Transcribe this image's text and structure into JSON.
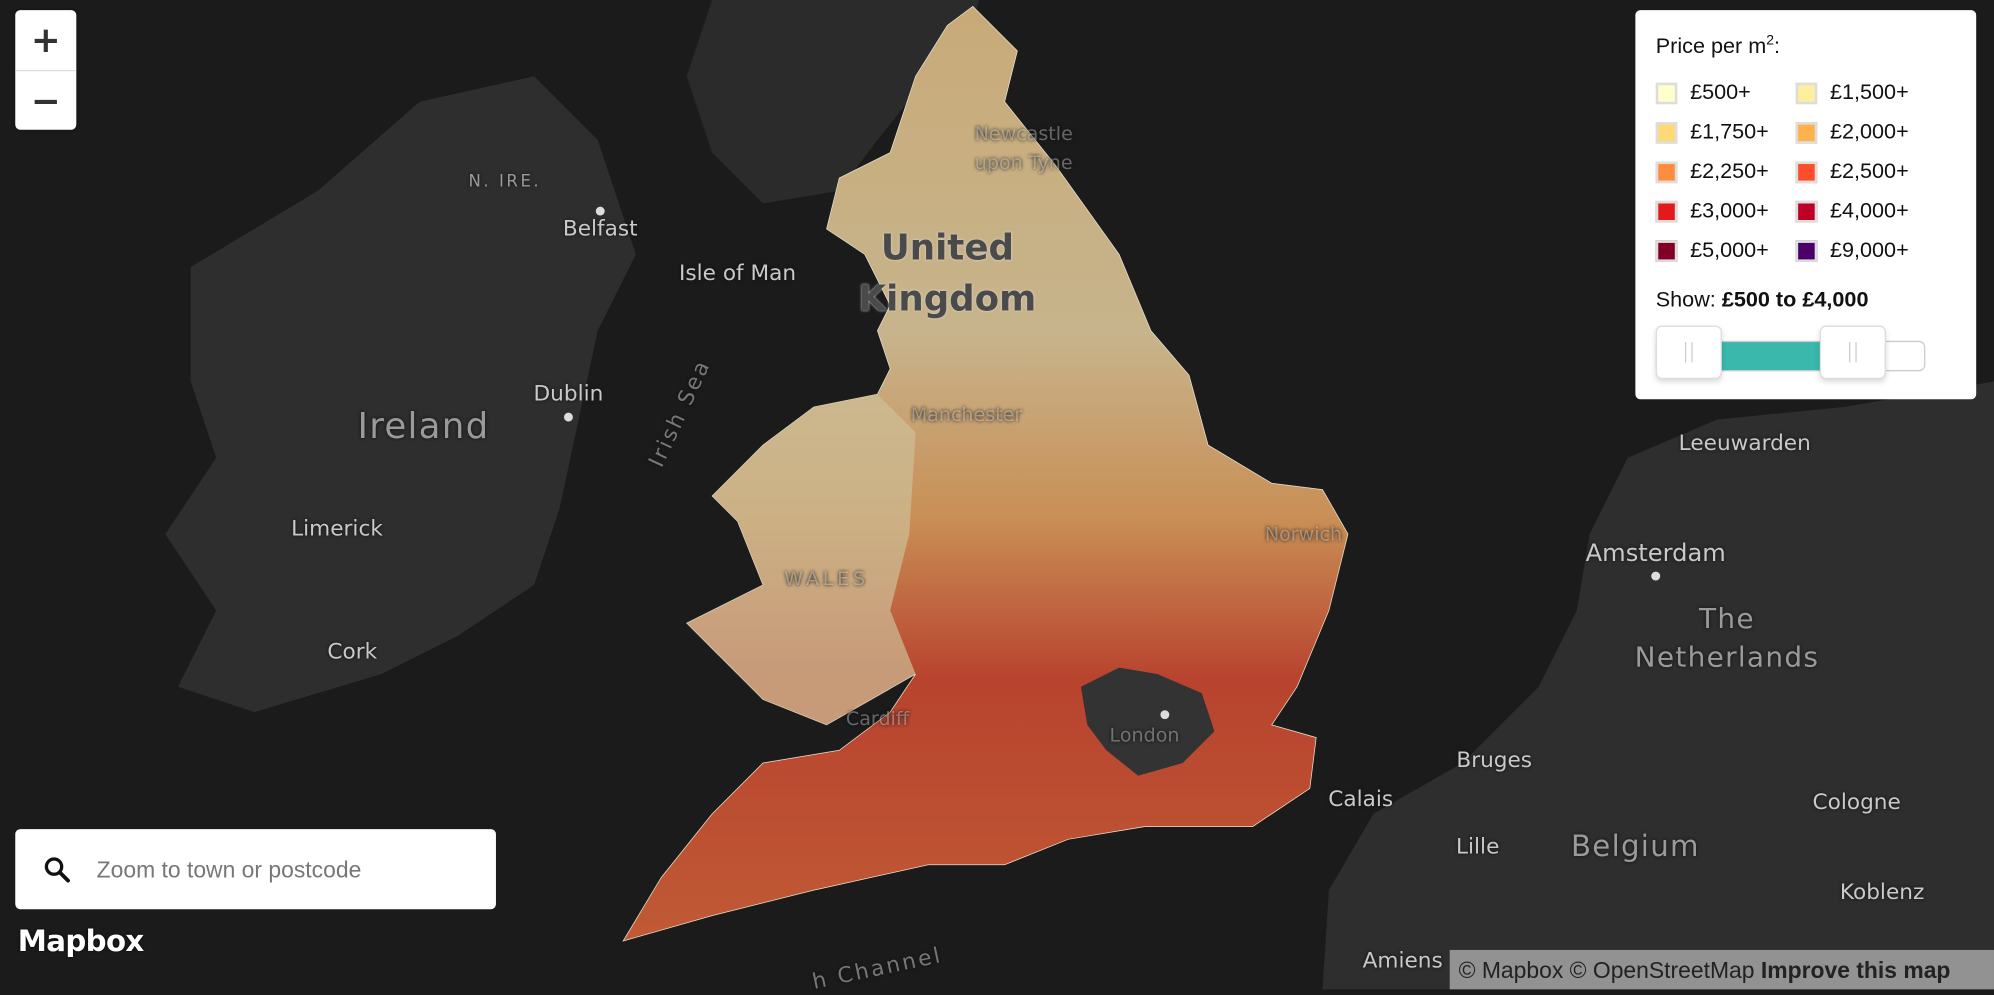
{
  "zoom": {
    "in_label": "+",
    "out_label": "−"
  },
  "search": {
    "placeholder": "Zoom to town or postcode",
    "icon": "search-icon"
  },
  "logo": "Mapbox",
  "attribution": {
    "mapbox": "© Mapbox",
    "osm": "© OpenStreetMap",
    "improve": "Improve this map"
  },
  "legend": {
    "title": "Price per m",
    "title_sup": "2",
    "title_suffix": ":",
    "items": [
      {
        "label": "£500+",
        "color": "#ffffcc"
      },
      {
        "label": "£1,500+",
        "color": "#ffeda0"
      },
      {
        "label": "£1,750+",
        "color": "#fed976"
      },
      {
        "label": "£2,000+",
        "color": "#feb24c"
      },
      {
        "label": "£2,250+",
        "color": "#fd8d3c"
      },
      {
        "label": "£2,500+",
        "color": "#fc4e2a"
      },
      {
        "label": "£3,000+",
        "color": "#e31a1c"
      },
      {
        "label": "£4,000+",
        "color": "#bd0026"
      },
      {
        "label": "£5,000+",
        "color": "#800026"
      },
      {
        "label": "£9,000+",
        "color": "#4a0068"
      }
    ],
    "show_label": "Show:",
    "show_range": "£500 to £4,000",
    "slider": {
      "min": "£500",
      "max": "£4,000",
      "accent": "#3ab8ac"
    }
  },
  "places": {
    "n_ire": "N. IRE.",
    "belfast": "Belfast",
    "isle_of_man": "Isle of Man",
    "uk_1": "United",
    "uk_2": "Kingdom",
    "dublin": "Dublin",
    "ireland": "Ireland",
    "irish_sea": "Irish Sea",
    "limerick": "Limerick",
    "cork": "Cork",
    "leeuwarden": "Leeuwarden",
    "amsterdam": "Amsterdam",
    "netherlands_1": "The",
    "netherlands_2": "Netherlands",
    "bruges": "Bruges",
    "calais": "Calais",
    "cologne": "Cologne",
    "lille": "Lille",
    "belgium": "Belgium",
    "koblenz": "Koblenz",
    "amiens": "Amiens",
    "channel": "h Channel",
    "newcastle_1": "Newcastle",
    "newcastle_2": "upon Tyne",
    "manchester": "Manchester",
    "norwich": "Norwich",
    "wales": "WALES",
    "cardiff": "Cardiff",
    "london": "London"
  }
}
